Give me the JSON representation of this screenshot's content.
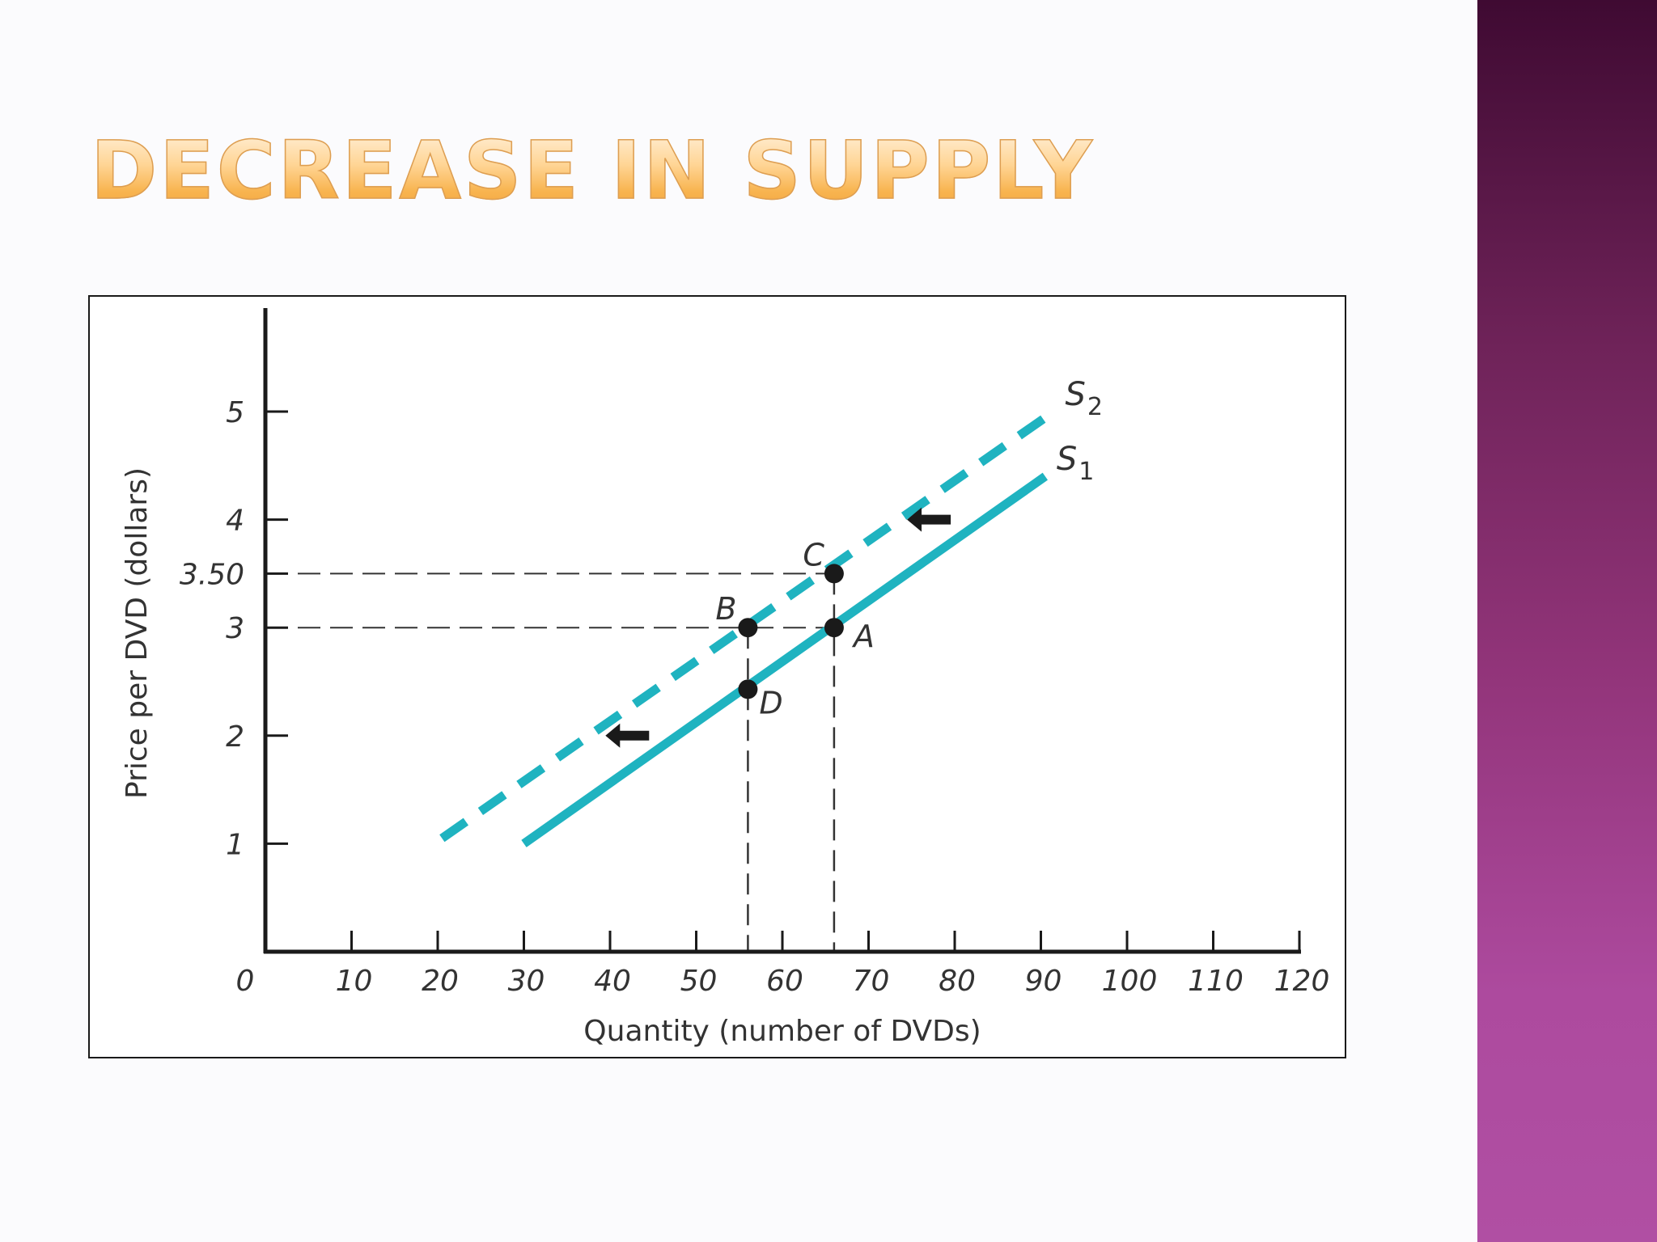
{
  "slide": {
    "title": "Decrease in Supply"
  },
  "colors": {
    "title_gradient_top": "#fff1dc",
    "title_gradient_bottom": "#f2a23a",
    "supply_curve": "#1fb3c0",
    "points": "#1a1a1a",
    "side_band_top": "#3f0a32",
    "side_band_bottom": "#b04fa3"
  },
  "chart_data": {
    "type": "line",
    "xlabel": "Quantity (number of DVDs)",
    "ylabel": "Price per DVD (dollars)",
    "origin_label": "0",
    "xlim": [
      0,
      120
    ],
    "ylim": [
      0,
      6
    ],
    "x_ticks": [
      {
        "value": 10,
        "label": "10"
      },
      {
        "value": 20,
        "label": "20"
      },
      {
        "value": 30,
        "label": "30"
      },
      {
        "value": 40,
        "label": "40"
      },
      {
        "value": 50,
        "label": "50"
      },
      {
        "value": 60,
        "label": "60"
      },
      {
        "value": 70,
        "label": "70"
      },
      {
        "value": 80,
        "label": "80"
      },
      {
        "value": 90,
        "label": "90"
      },
      {
        "value": 100,
        "label": "100"
      },
      {
        "value": 110,
        "label": "110"
      },
      {
        "value": 120,
        "label": "120"
      }
    ],
    "y_ticks": [
      {
        "value": 1,
        "label": "1"
      },
      {
        "value": 2,
        "label": "2"
      },
      {
        "value": 3,
        "label": "3"
      },
      {
        "value": 3.5,
        "label": "3.50"
      },
      {
        "value": 4,
        "label": "4"
      },
      {
        "value": 5,
        "label": "5"
      }
    ],
    "series": [
      {
        "name": "S",
        "sub": "1",
        "style": "solid",
        "x": [
          30,
          90.5
        ],
        "y": [
          1.0,
          4.4
        ]
      },
      {
        "name": "S",
        "sub": "2",
        "style": "dashed",
        "x": [
          20.5,
          91.5
        ],
        "y": [
          1.05,
          5.0
        ]
      }
    ],
    "points": [
      {
        "label": "A",
        "x": 66,
        "y": 3.0
      },
      {
        "label": "B",
        "x": 56,
        "y": 3.0
      },
      {
        "label": "C",
        "x": 66,
        "y": 3.5
      },
      {
        "label": "D",
        "x": 56,
        "y": 2.43
      }
    ],
    "reference_lines": [
      {
        "type": "horizontal",
        "y": 3.5,
        "x_to": 66
      },
      {
        "type": "horizontal",
        "y": 3.0,
        "x_to": 66
      },
      {
        "type": "vertical",
        "x": 56,
        "y_to": 3.0
      },
      {
        "type": "vertical",
        "x": 66,
        "y_to": 3.5
      }
    ],
    "shift_arrows": [
      {
        "x": 77,
        "y": 4.0,
        "direction": "left"
      },
      {
        "x": 42,
        "y": 2.0,
        "direction": "left"
      }
    ],
    "grid": false,
    "legend": "none"
  }
}
